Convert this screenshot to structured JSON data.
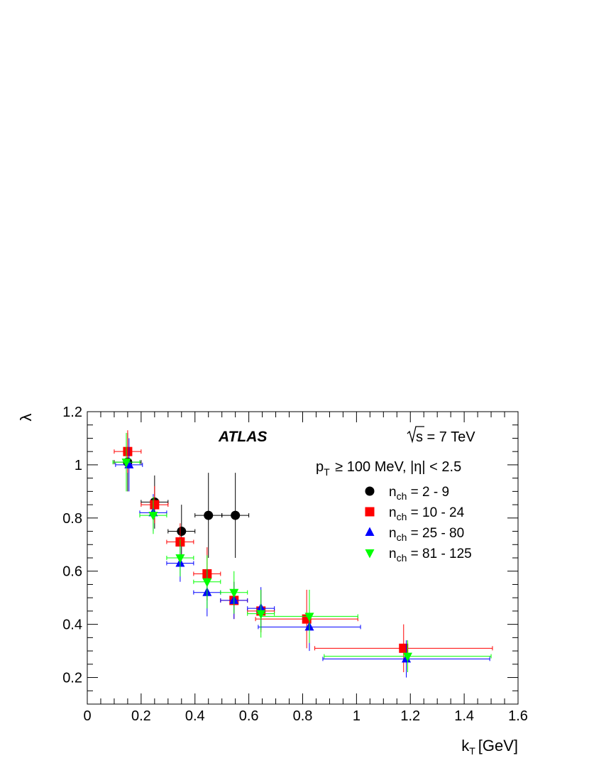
{
  "chart_data": {
    "type": "scatter",
    "xlabel": "k",
    "xlabel_sub": "T",
    "xlabel_unit": "[GeV]",
    "ylabel": "λ",
    "xlim": [
      0,
      1.6
    ],
    "ylim": [
      0.1,
      1.2
    ],
    "x_ticks": [
      "0",
      "0.2",
      "0.4",
      "0.6",
      "0.8",
      "1",
      "1.2",
      "1.4",
      "1.6"
    ],
    "y_ticks": [
      "0.2",
      "0.4",
      "0.6",
      "0.8",
      "1",
      "1.2"
    ],
    "grid": false,
    "legend_position": "top-right",
    "annotations": {
      "experiment": "ATLAS",
      "energy_pre": "s",
      "energy_post": " = 7 TeV",
      "cuts_p": "p",
      "cuts_sub": "T",
      "cuts_post": " ≥ 100 MeV, |η| < 2.5"
    },
    "series": [
      {
        "name": "n",
        "name_sub": "ch",
        "name_range": " = 2 - 9",
        "marker": "circle",
        "color": "#000000",
        "points": [
          {
            "x": 0.15,
            "y": 1.01,
            "xerr": 0.05,
            "yerr": 0.11
          },
          {
            "x": 0.25,
            "y": 0.86,
            "xerr": 0.05,
            "yerr": 0.1
          },
          {
            "x": 0.35,
            "y": 0.75,
            "xerr": 0.05,
            "yerr": 0.1
          },
          {
            "x": 0.45,
            "y": 0.81,
            "xerr": 0.05,
            "yerr": 0.16
          },
          {
            "x": 0.55,
            "y": 0.81,
            "xerr": 0.05,
            "yerr": 0.16
          }
        ]
      },
      {
        "name": "n",
        "name_sub": "ch",
        "name_range": " = 10 - 24",
        "marker": "square",
        "color": "#ff0000",
        "points": [
          {
            "x": 0.15,
            "y": 1.05,
            "xerr": 0.05,
            "yerr": 0.08
          },
          {
            "x": 0.25,
            "y": 0.85,
            "xerr": 0.05,
            "yerr": 0.07
          },
          {
            "x": 0.345,
            "y": 0.71,
            "xerr": 0.05,
            "yerr": 0.07
          },
          {
            "x": 0.445,
            "y": 0.59,
            "xerr": 0.05,
            "yerr": 0.1
          },
          {
            "x": 0.545,
            "y": 0.49,
            "xerr": 0.05,
            "yerr": 0.07
          },
          {
            "x": 0.645,
            "y": 0.45,
            "xerr": 0.05,
            "yerr": 0.08
          },
          {
            "x": 0.815,
            "y": 0.42,
            "xerr": 0.19,
            "yerr": 0.11
          },
          {
            "x": 1.175,
            "y": 0.31,
            "xerr": 0.33,
            "yerr": 0.09
          }
        ]
      },
      {
        "name": "n",
        "name_sub": "ch",
        "name_range": " = 25 - 80",
        "marker": "triangle-up",
        "color": "#0000ff",
        "points": [
          {
            "x": 0.155,
            "y": 1.0,
            "xerr": 0.05,
            "yerr": 0.1
          },
          {
            "x": 0.245,
            "y": 0.82,
            "xerr": 0.05,
            "yerr": 0.07
          },
          {
            "x": 0.345,
            "y": 0.63,
            "xerr": 0.05,
            "yerr": 0.07
          },
          {
            "x": 0.445,
            "y": 0.52,
            "xerr": 0.05,
            "yerr": 0.09
          },
          {
            "x": 0.545,
            "y": 0.49,
            "xerr": 0.05,
            "yerr": 0.07
          },
          {
            "x": 0.645,
            "y": 0.46,
            "xerr": 0.05,
            "yerr": 0.08
          },
          {
            "x": 0.825,
            "y": 0.39,
            "xerr": 0.19,
            "yerr": 0.09
          },
          {
            "x": 1.185,
            "y": 0.27,
            "xerr": 0.31,
            "yerr": 0.07
          }
        ]
      },
      {
        "name": "n",
        "name_sub": "ch",
        "name_range": " = 81 - 125",
        "marker": "triangle-down",
        "color": "#00ff00",
        "points": [
          {
            "x": 0.145,
            "y": 1.01,
            "xerr": 0.05,
            "yerr": 0.11
          },
          {
            "x": 0.245,
            "y": 0.81,
            "xerr": 0.05,
            "yerr": 0.07
          },
          {
            "x": 0.345,
            "y": 0.65,
            "xerr": 0.05,
            "yerr": 0.07
          },
          {
            "x": 0.445,
            "y": 0.56,
            "xerr": 0.05,
            "yerr": 0.1
          },
          {
            "x": 0.545,
            "y": 0.52,
            "xerr": 0.05,
            "yerr": 0.08
          },
          {
            "x": 0.645,
            "y": 0.44,
            "xerr": 0.05,
            "yerr": 0.09
          },
          {
            "x": 0.825,
            "y": 0.43,
            "xerr": 0.18,
            "yerr": 0.1
          },
          {
            "x": 1.19,
            "y": 0.28,
            "xerr": 0.31,
            "yerr": 0.06
          }
        ]
      }
    ]
  }
}
